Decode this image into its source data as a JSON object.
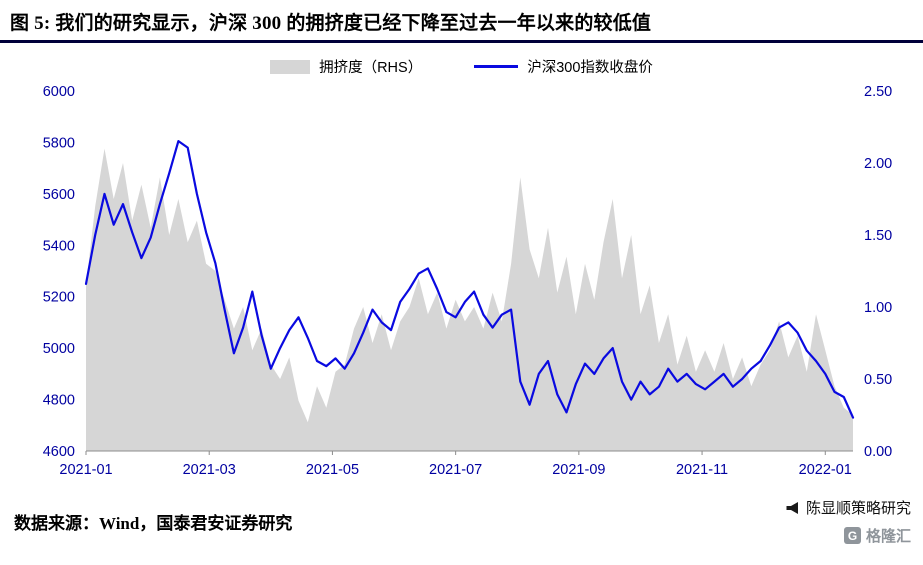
{
  "header": {
    "title": "图 5: 我们的研究显示，沪深 300 的拥挤度已经下降至过去一年以来的较低值"
  },
  "legend": {
    "area_label": "拥挤度（RHS）",
    "line_label": "沪深300指数收盘价"
  },
  "footer": {
    "source": "数据来源：Wind，国泰君安证券研究"
  },
  "watermark": {
    "name": "陈显顺策略研究",
    "logo": "格隆汇"
  },
  "colors": {
    "line": "#0a0ae0",
    "area": "#d6d6d6",
    "axis_text": "#0000a0",
    "axis_line": "#8c8c8c",
    "title_rule": "#00003a"
  },
  "chart_data": {
    "type": "line",
    "title": "沪深300指数收盘价 vs 拥挤度",
    "x_unit": "months since 2021-01",
    "x": [
      0,
      0.15,
      0.3,
      0.45,
      0.6,
      0.75,
      0.9,
      1.05,
      1.2,
      1.35,
      1.5,
      1.65,
      1.8,
      1.95,
      2.1,
      2.25,
      2.4,
      2.55,
      2.7,
      2.85,
      3.0,
      3.15,
      3.3,
      3.45,
      3.6,
      3.75,
      3.9,
      4.05,
      4.2,
      4.35,
      4.5,
      4.65,
      4.8,
      4.95,
      5.1,
      5.25,
      5.4,
      5.55,
      5.7,
      5.85,
      6.0,
      6.15,
      6.3,
      6.45,
      6.6,
      6.75,
      6.9,
      7.05,
      7.2,
      7.35,
      7.5,
      7.65,
      7.8,
      7.95,
      8.1,
      8.25,
      8.4,
      8.55,
      8.7,
      8.85,
      9.0,
      9.15,
      9.3,
      9.45,
      9.6,
      9.75,
      9.9,
      10.05,
      10.2,
      10.35,
      10.5,
      10.65,
      10.8,
      10.95,
      11.1,
      11.25,
      11.4,
      11.55,
      11.7,
      11.85,
      12.0,
      12.15,
      12.3,
      12.45
    ],
    "series": [
      {
        "name": "沪深300指数收盘价",
        "type": "line",
        "axis": "left",
        "color": "#0a0ae0",
        "values": [
          5250,
          5440,
          5600,
          5480,
          5560,
          5450,
          5350,
          5430,
          5560,
          5680,
          5805,
          5780,
          5600,
          5450,
          5330,
          5150,
          4980,
          5080,
          5220,
          5050,
          4920,
          5000,
          5070,
          5120,
          5040,
          4950,
          4930,
          4960,
          4920,
          4980,
          5060,
          5150,
          5100,
          5070,
          5180,
          5230,
          5290,
          5310,
          5230,
          5140,
          5120,
          5180,
          5220,
          5130,
          5080,
          5130,
          5150,
          4870,
          4780,
          4900,
          4950,
          4820,
          4750,
          4860,
          4940,
          4900,
          4960,
          5000,
          4870,
          4800,
          4870,
          4820,
          4850,
          4920,
          4870,
          4900,
          4860,
          4840,
          4870,
          4900,
          4850,
          4880,
          4920,
          4950,
          5010,
          5080,
          5100,
          5060,
          4990,
          4950,
          4900,
          4830,
          4810,
          4730
        ]
      },
      {
        "name": "拥挤度（RHS）",
        "type": "area",
        "axis": "right",
        "color": "#d6d6d6",
        "values": [
          1.15,
          1.7,
          2.1,
          1.75,
          2.0,
          1.6,
          1.85,
          1.55,
          1.9,
          1.5,
          1.75,
          1.45,
          1.6,
          1.3,
          1.25,
          1.05,
          0.85,
          1.0,
          0.7,
          0.85,
          0.6,
          0.5,
          0.65,
          0.35,
          0.2,
          0.45,
          0.3,
          0.55,
          0.6,
          0.85,
          1.0,
          0.75,
          0.95,
          0.7,
          0.9,
          1.0,
          1.2,
          0.95,
          1.1,
          0.85,
          1.05,
          0.9,
          1.0,
          0.85,
          1.1,
          0.9,
          1.3,
          1.9,
          1.4,
          1.2,
          1.55,
          1.1,
          1.35,
          0.95,
          1.3,
          1.05,
          1.45,
          1.75,
          1.2,
          1.5,
          0.95,
          1.15,
          0.75,
          0.95,
          0.6,
          0.8,
          0.55,
          0.7,
          0.55,
          0.75,
          0.5,
          0.65,
          0.45,
          0.6,
          0.7,
          0.9,
          0.65,
          0.8,
          0.55,
          0.95,
          0.7,
          0.45,
          0.3,
          0.25
        ]
      }
    ],
    "left_axis": {
      "min": 4600,
      "max": 6000,
      "ticks": [
        6000,
        5800,
        5600,
        5400,
        5200,
        5000,
        4800,
        4600
      ]
    },
    "right_axis": {
      "min": 0,
      "max": 2.5,
      "ticks": [
        "2.50",
        "2.00",
        "1.50",
        "1.00",
        "0.50",
        "0.00"
      ]
    },
    "x_axis": {
      "min": 0,
      "max": 12.45,
      "ticks": [
        {
          "pos": 0,
          "label": "2021-01"
        },
        {
          "pos": 2,
          "label": "2021-03"
        },
        {
          "pos": 4,
          "label": "2021-05"
        },
        {
          "pos": 6,
          "label": "2021-07"
        },
        {
          "pos": 8,
          "label": "2021-09"
        },
        {
          "pos": 10,
          "label": "2021-11"
        },
        {
          "pos": 12,
          "label": "2022-01"
        }
      ]
    },
    "grid": false,
    "legend_position": "top"
  }
}
